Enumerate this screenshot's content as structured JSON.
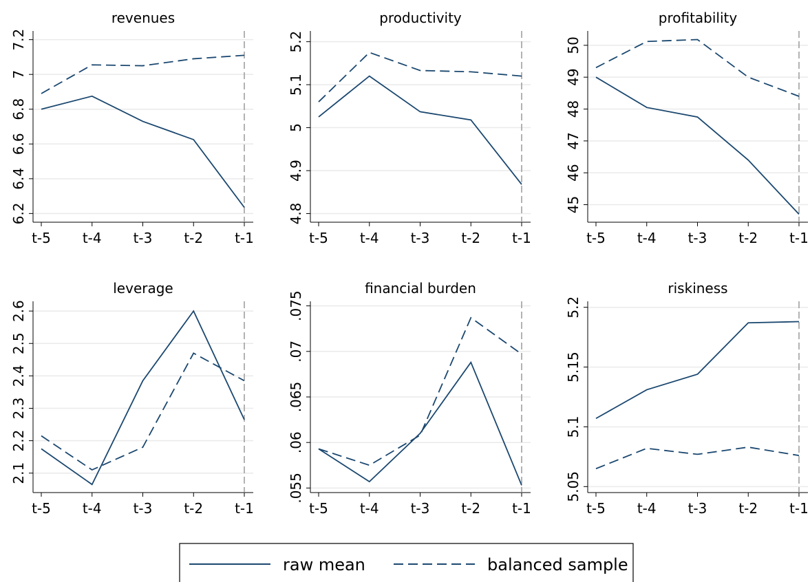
{
  "chart_data": [
    {
      "type": "line",
      "title": "revenues",
      "categories": [
        "t-5",
        "t-4",
        "t-3",
        "t-2",
        "t-1"
      ],
      "series": [
        {
          "name": "raw mean",
          "color": "#1a476f",
          "line_style": "solid",
          "values": [
            6.8,
            6.875,
            6.73,
            6.625,
            6.235
          ]
        },
        {
          "name": "balanced sample",
          "color": "#1a476f",
          "line_style": "dashed",
          "values": [
            6.89,
            7.055,
            7.05,
            7.09,
            7.11
          ]
        }
      ],
      "ylim": [
        6.15,
        7.25
      ],
      "yticks": [
        6.2,
        6.4,
        6.6,
        6.8,
        7,
        7.2
      ],
      "grid": true
    },
    {
      "type": "line",
      "title": "productivity",
      "categories": [
        "t-5",
        "t-4",
        "t-3",
        "t-2",
        "t-1"
      ],
      "series": [
        {
          "color": "#1a476f",
          "line_style": "solid",
          "values": [
            5.025,
            5.12,
            5.037,
            5.018,
            4.868
          ]
        },
        {
          "color": "#1a476f",
          "line_style": "dashed",
          "values": [
            5.06,
            5.175,
            5.133,
            5.13,
            5.12
          ]
        }
      ],
      "ylim": [
        4.78,
        5.225
      ],
      "yticks": [
        4.8,
        4.9,
        5,
        5.1,
        5.2
      ],
      "grid": true
    },
    {
      "type": "line",
      "title": "profitability",
      "categories": [
        "t-5",
        "t-4",
        "t-3",
        "t-2",
        "t-1"
      ],
      "series": [
        {
          "color": "#1a476f",
          "line_style": "solid",
          "values": [
            49,
            48.05,
            47.75,
            46.4,
            44.7
          ]
        },
        {
          "color": "#1a476f",
          "line_style": "dashed",
          "values": [
            49.3,
            50.12,
            50.18,
            49,
            48.4
          ]
        }
      ],
      "ylim": [
        44.45,
        50.45
      ],
      "yticks": [
        45,
        46,
        47,
        48,
        49,
        50
      ],
      "grid": true
    },
    {
      "type": "line",
      "title": "leverage",
      "categories": [
        "t-5",
        "t-4",
        "t-3",
        "t-2",
        "t-1"
      ],
      "series": [
        {
          "color": "#1a476f",
          "line_style": "solid",
          "values": [
            2.175,
            2.065,
            2.385,
            2.6,
            2.265
          ]
        },
        {
          "color": "#1a476f",
          "line_style": "dashed",
          "values": [
            2.215,
            2.11,
            2.18,
            2.47,
            2.385
          ]
        }
      ],
      "ylim": [
        2.04,
        2.63
      ],
      "yticks": [
        2.1,
        2.2,
        2.3,
        2.4,
        2.5,
        2.6
      ],
      "grid": true
    },
    {
      "type": "line",
      "title": "financial burden",
      "categories": [
        "t-5",
        "t-4",
        "t-3",
        "t-2",
        "t-1"
      ],
      "series": [
        {
          "color": "#1a476f",
          "line_style": "solid",
          "values": [
            0.0593,
            0.0557,
            0.061,
            0.0688,
            0.0553
          ]
        },
        {
          "color": "#1a476f",
          "line_style": "dashed",
          "values": [
            0.0593,
            0.0575,
            0.0608,
            0.0737,
            0.0697
          ]
        }
      ],
      "ylim": [
        0.0545,
        0.0755
      ],
      "yticks": [
        {
          "value": 0.055,
          "label": ".055"
        },
        {
          "value": 0.06,
          "label": ".06"
        },
        {
          "value": 0.065,
          "label": ".065"
        },
        {
          "value": 0.07,
          "label": ".07"
        },
        {
          "value": 0.075,
          "label": ".075"
        }
      ],
      "grid": true
    },
    {
      "type": "line",
      "title": "riskiness",
      "categories": [
        "t-5",
        "t-4",
        "t-3",
        "t-2",
        "t-1"
      ],
      "series": [
        {
          "color": "#1a476f",
          "line_style": "solid",
          "values": [
            5.107,
            5.131,
            5.144,
            5.187,
            5.188
          ]
        },
        {
          "color": "#1a476f",
          "line_style": "dashed",
          "values": [
            5.065,
            5.082,
            5.077,
            5.083,
            5.076
          ]
        }
      ],
      "ylim": [
        5.045,
        5.205
      ],
      "yticks": [
        5.05,
        5.1,
        5.15,
        5.2
      ],
      "grid": true
    }
  ]
}
